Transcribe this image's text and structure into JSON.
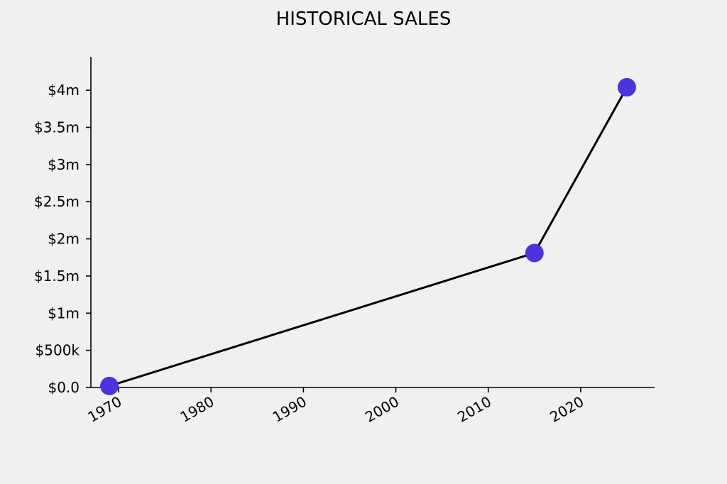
{
  "chart_data": {
    "type": "line",
    "title": "HISTORICAL SALES",
    "xlabel": "",
    "ylabel": "",
    "x": [
      1969,
      2015,
      2025
    ],
    "series": [
      {
        "values": [
          20000,
          1810000,
          4040000
        ]
      }
    ],
    "xlim": [
      1967,
      2028
    ],
    "ylim": [
      0,
      4450000
    ],
    "x_ticks": [
      {
        "value": 1970,
        "label": "1970"
      },
      {
        "value": 1980,
        "label": "1980"
      },
      {
        "value": 1990,
        "label": "1990"
      },
      {
        "value": 2000,
        "label": "2000"
      },
      {
        "value": 2010,
        "label": "2010"
      },
      {
        "value": 2020,
        "label": "2020"
      }
    ],
    "y_ticks": [
      {
        "value": 0,
        "label": "$0.0"
      },
      {
        "value": 500000,
        "label": "$500k"
      },
      {
        "value": 1000000,
        "label": "$1m"
      },
      {
        "value": 1500000,
        "label": "$1.5m"
      },
      {
        "value": 2000000,
        "label": "$2m"
      },
      {
        "value": 2500000,
        "label": "$2.5m"
      },
      {
        "value": 3000000,
        "label": "$3m"
      },
      {
        "value": 3500000,
        "label": "$3.5m"
      },
      {
        "value": 4000000,
        "label": "$4m"
      }
    ],
    "grid": false,
    "line_color": "#000000",
    "marker_color": "#4b33de",
    "background": "#f0f0f0"
  }
}
